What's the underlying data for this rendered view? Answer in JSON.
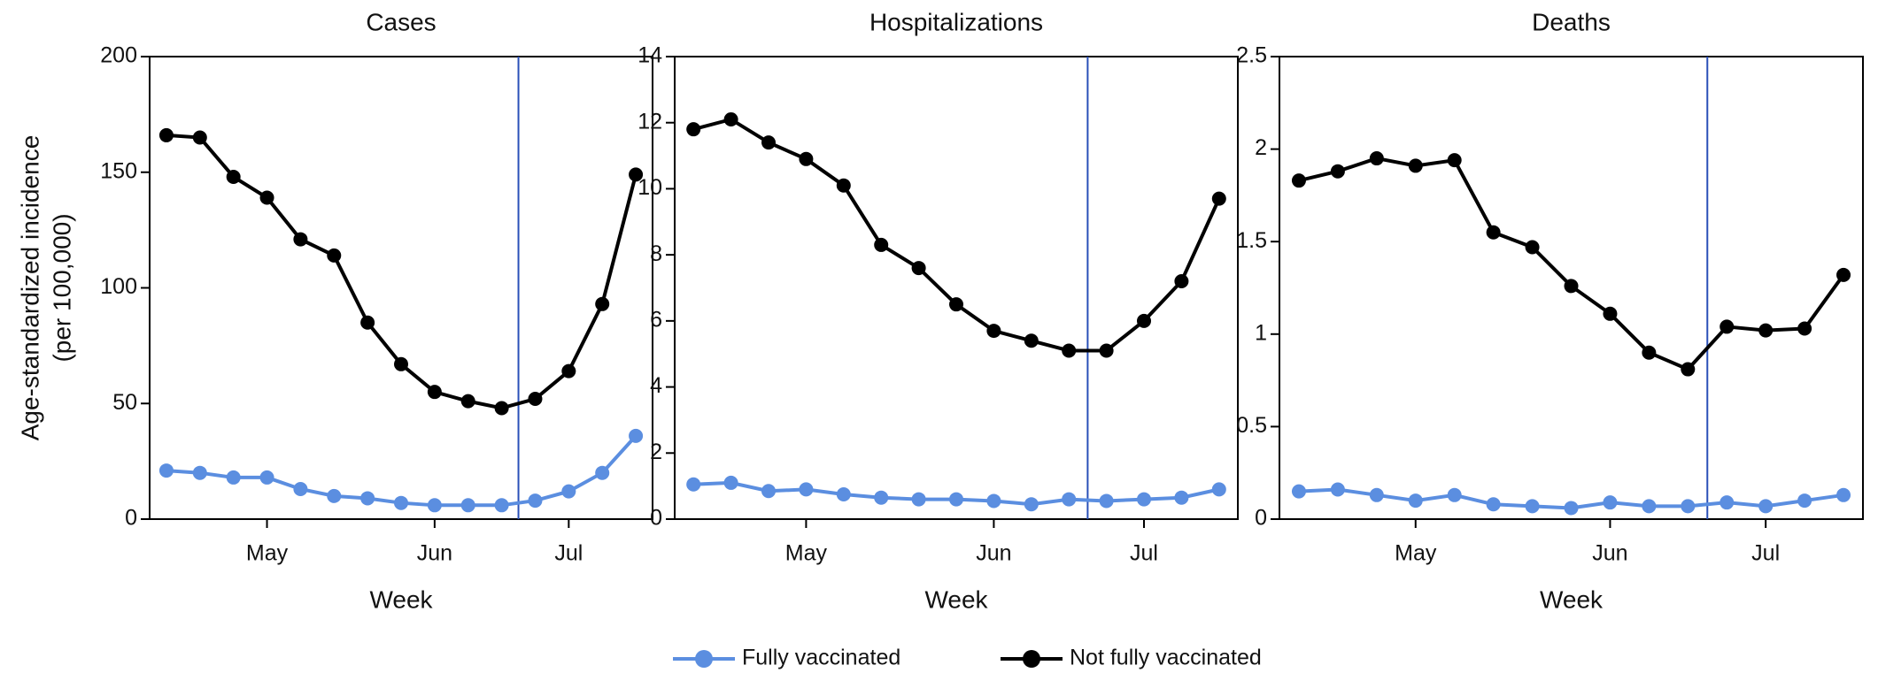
{
  "chart_data": [
    {
      "type": "line",
      "title": "Cases",
      "y_label": [
        "Age-standardized incidence",
        "(per 100,000)"
      ],
      "x_label": "Week",
      "categories": [
        null,
        null,
        null,
        "May",
        null,
        null,
        null,
        null,
        "Jun",
        null,
        null,
        null,
        "Jul",
        null,
        null
      ],
      "ylim": [
        0,
        200
      ],
      "yticks": [
        0,
        50,
        100,
        150,
        200
      ],
      "series": [
        {
          "name": "Fully vaccinated",
          "color": "#5b8ee0",
          "values": [
            21,
            20,
            18,
            18,
            13,
            10,
            9,
            7,
            6,
            6,
            6,
            8,
            12,
            20,
            36
          ]
        },
        {
          "name": "Not fully vaccinated",
          "color": "#000000",
          "values": [
            166,
            165,
            148,
            139,
            121,
            114,
            85,
            67,
            55,
            51,
            48,
            52,
            64,
            93,
            149
          ]
        }
      ]
    },
    {
      "type": "line",
      "title": "Hospitalizations",
      "x_label": "Week",
      "categories": [
        null,
        null,
        null,
        "May",
        null,
        null,
        null,
        null,
        "Jun",
        null,
        null,
        null,
        "Jul",
        null,
        null
      ],
      "ylim": [
        0,
        14
      ],
      "yticks": [
        0,
        2,
        4,
        6,
        8,
        10,
        12,
        14
      ],
      "series": [
        {
          "name": "Fully vaccinated",
          "color": "#5b8ee0",
          "values": [
            1.05,
            1.1,
            0.85,
            0.9,
            0.75,
            0.65,
            0.6,
            0.6,
            0.55,
            0.45,
            0.6,
            0.55,
            0.6,
            0.65,
            0.9
          ]
        },
        {
          "name": "Not fully vaccinated",
          "color": "#000000",
          "values": [
            11.8,
            12.1,
            11.4,
            10.9,
            10.1,
            8.3,
            7.6,
            6.5,
            5.7,
            5.4,
            5.1,
            5.1,
            6.0,
            7.2,
            9.7
          ]
        }
      ]
    },
    {
      "type": "line",
      "title": "Deaths",
      "x_label": "Week",
      "categories": [
        null,
        null,
        null,
        "May",
        null,
        null,
        null,
        null,
        "Jun",
        null,
        null,
        null,
        "Jul",
        null,
        null
      ],
      "ylim": [
        0,
        2.5
      ],
      "yticks": [
        0,
        0.5,
        1,
        1.5,
        2,
        2.5
      ],
      "series": [
        {
          "name": "Fully vaccinated",
          "color": "#5b8ee0",
          "values": [
            0.15,
            0.16,
            0.13,
            0.1,
            0.13,
            0.08,
            0.07,
            0.06,
            0.09,
            0.07,
            0.07,
            0.09,
            0.07,
            0.1,
            0.13
          ]
        },
        {
          "name": "Not fully vaccinated",
          "color": "#000000",
          "values": [
            1.83,
            1.88,
            1.95,
            1.91,
            1.94,
            1.55,
            1.47,
            1.26,
            1.11,
            0.9,
            0.81,
            1.04,
            1.02,
            1.03,
            1.32
          ]
        }
      ]
    }
  ]
}
